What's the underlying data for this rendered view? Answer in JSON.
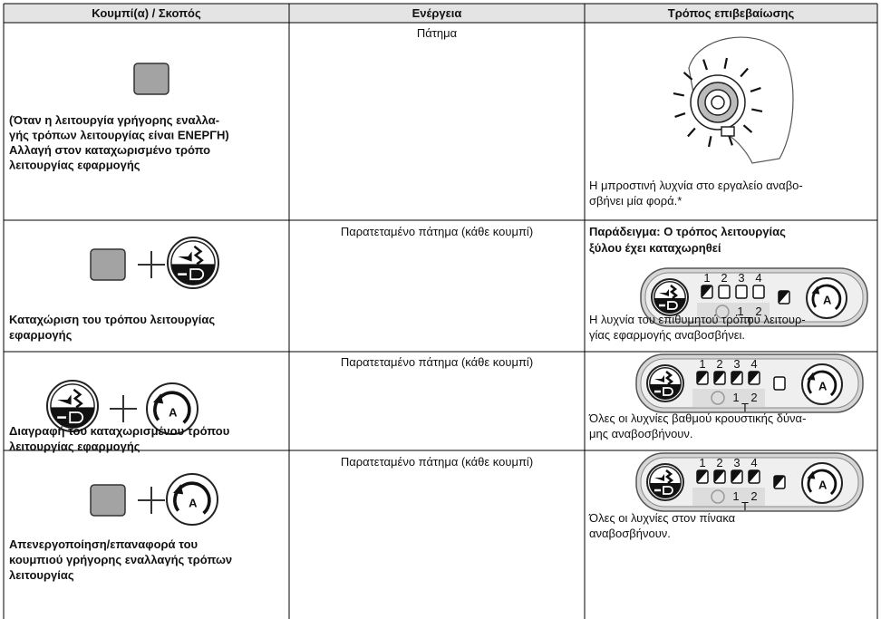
{
  "table": {
    "header": [
      "Κουμπί(α) / Σκοπός",
      "Ενέργεια",
      "Τρόπος επιβεβαίωσης"
    ],
    "rows": [
      {
        "purpose": [
          "(Όταν η λειτουργία γρήγορης εναλλα-",
          "γής τρόπων λειτουργίας είναι ΕΝΕΡΓΗ)",
          "Αλλαγή στον καταχωρισμένο τρόπο",
          "λειτουργίας εφαρμογής"
        ],
        "action": "Πάτημα",
        "confirmation": {
          "note": [
            "Η μπροστινή λυχνία στο εργαλείο αναβο-",
            "σβήνει μία φορά.*"
          ]
        }
      },
      {
        "purpose": [
          "Καταχώριση του τρόπου λειτουργίας",
          "εφαρμογής"
        ],
        "action": "Παρατεταμένο πάτημα (κάθε κουμπί)",
        "confirmation": {
          "heading": [
            "Παράδειγμα: Ο τρόπος λειτουργίας",
            "ξύλου έχει καταχωρηθεί"
          ],
          "note": [
            "Η λυχνία του επιθυμητού τρόπου λειτουρ-",
            "γίας εφαρμογής αναβοσβήνει."
          ]
        }
      },
      {
        "purpose": [
          "Διαγραφή του καταχωρισμένου τρόπου",
          "λειτουργίας εφαρμογής"
        ],
        "action": "Παρατεταμένο πάτημα (κάθε κουμπί)",
        "confirmation": {
          "note": [
            "Όλες οι λυχνίες βαθμού κρουστικής δύνα-",
            "μης αναβοσβήνουν."
          ]
        }
      },
      {
        "purpose": [
          "Απενεργοποίηση/επαναφορά του",
          "κουμπιού γρήγορης εναλλαγής τρόπων",
          "λειτουργίας"
        ],
        "action": "Παρατεταμένο πάτημα (κάθε κουμπί)",
        "confirmation": {
          "note": [
            "Όλες οι λυχνίες στον πίνακα",
            "αναβοσβήνουν."
          ]
        }
      }
    ]
  },
  "icons": {
    "levels": [
      "1",
      "2",
      "3",
      "4"
    ],
    "impact": [
      "1",
      "2"
    ],
    "t": "T",
    "mode": "A"
  }
}
